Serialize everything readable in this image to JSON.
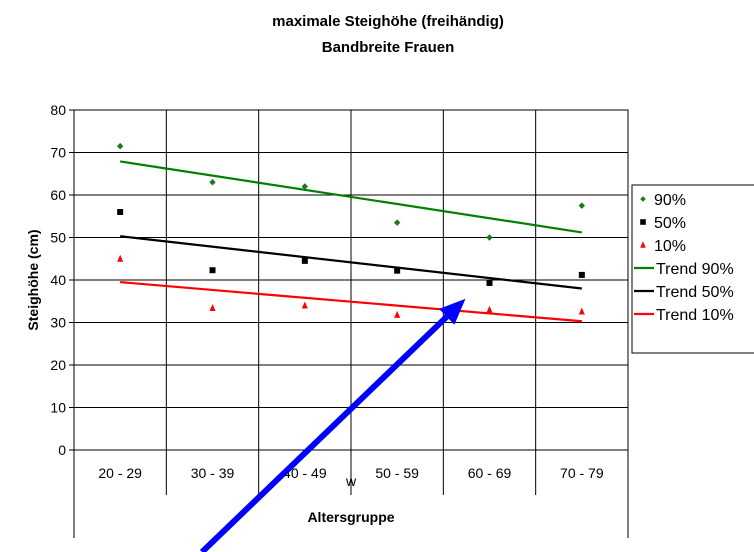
{
  "chart_data": {
    "type": "scatter",
    "title": "maximale Steighöhe (freihändig)",
    "subtitle": "Bandbreite Frauen",
    "xlabel": "Altersgruppe",
    "x_group_label": "w",
    "ylabel": "Steighöhe (cm)",
    "ylim": [
      0,
      80
    ],
    "y_ticks": [
      0,
      10,
      20,
      30,
      40,
      50,
      60,
      70,
      80
    ],
    "categories": [
      "20 - 29",
      "30 - 39",
      "40 - 49",
      "50 - 59",
      "60 - 69",
      "70 - 79"
    ],
    "grid": true,
    "legend_position": "right",
    "series": [
      {
        "name": "90%",
        "marker": "diamond",
        "color": "#1a7a1a",
        "values": [
          71.5,
          63,
          62,
          53.5,
          50,
          57.5
        ]
      },
      {
        "name": "50%",
        "marker": "square",
        "color": "#000000",
        "values": [
          56,
          42.3,
          44.5,
          42.2,
          39.3,
          41.2
        ]
      },
      {
        "name": "10%",
        "marker": "triangle",
        "color": "#ff0000",
        "values": [
          45,
          33.4,
          34,
          31.8,
          33,
          32.6
        ]
      }
    ],
    "trends": [
      {
        "name": "Trend 90%",
        "color": "#008000",
        "start": 67.9,
        "end": 51.2
      },
      {
        "name": "Trend 50%",
        "color": "#000000",
        "start": 50.3,
        "end": 38
      },
      {
        "name": "Trend 10%",
        "color": "#ff0000",
        "start": 39.5,
        "end": 30.3
      }
    ],
    "annotation_arrow": {
      "color": "#0000ff",
      "points_to_category": "60 - 69",
      "points_to_value": 37
    }
  }
}
